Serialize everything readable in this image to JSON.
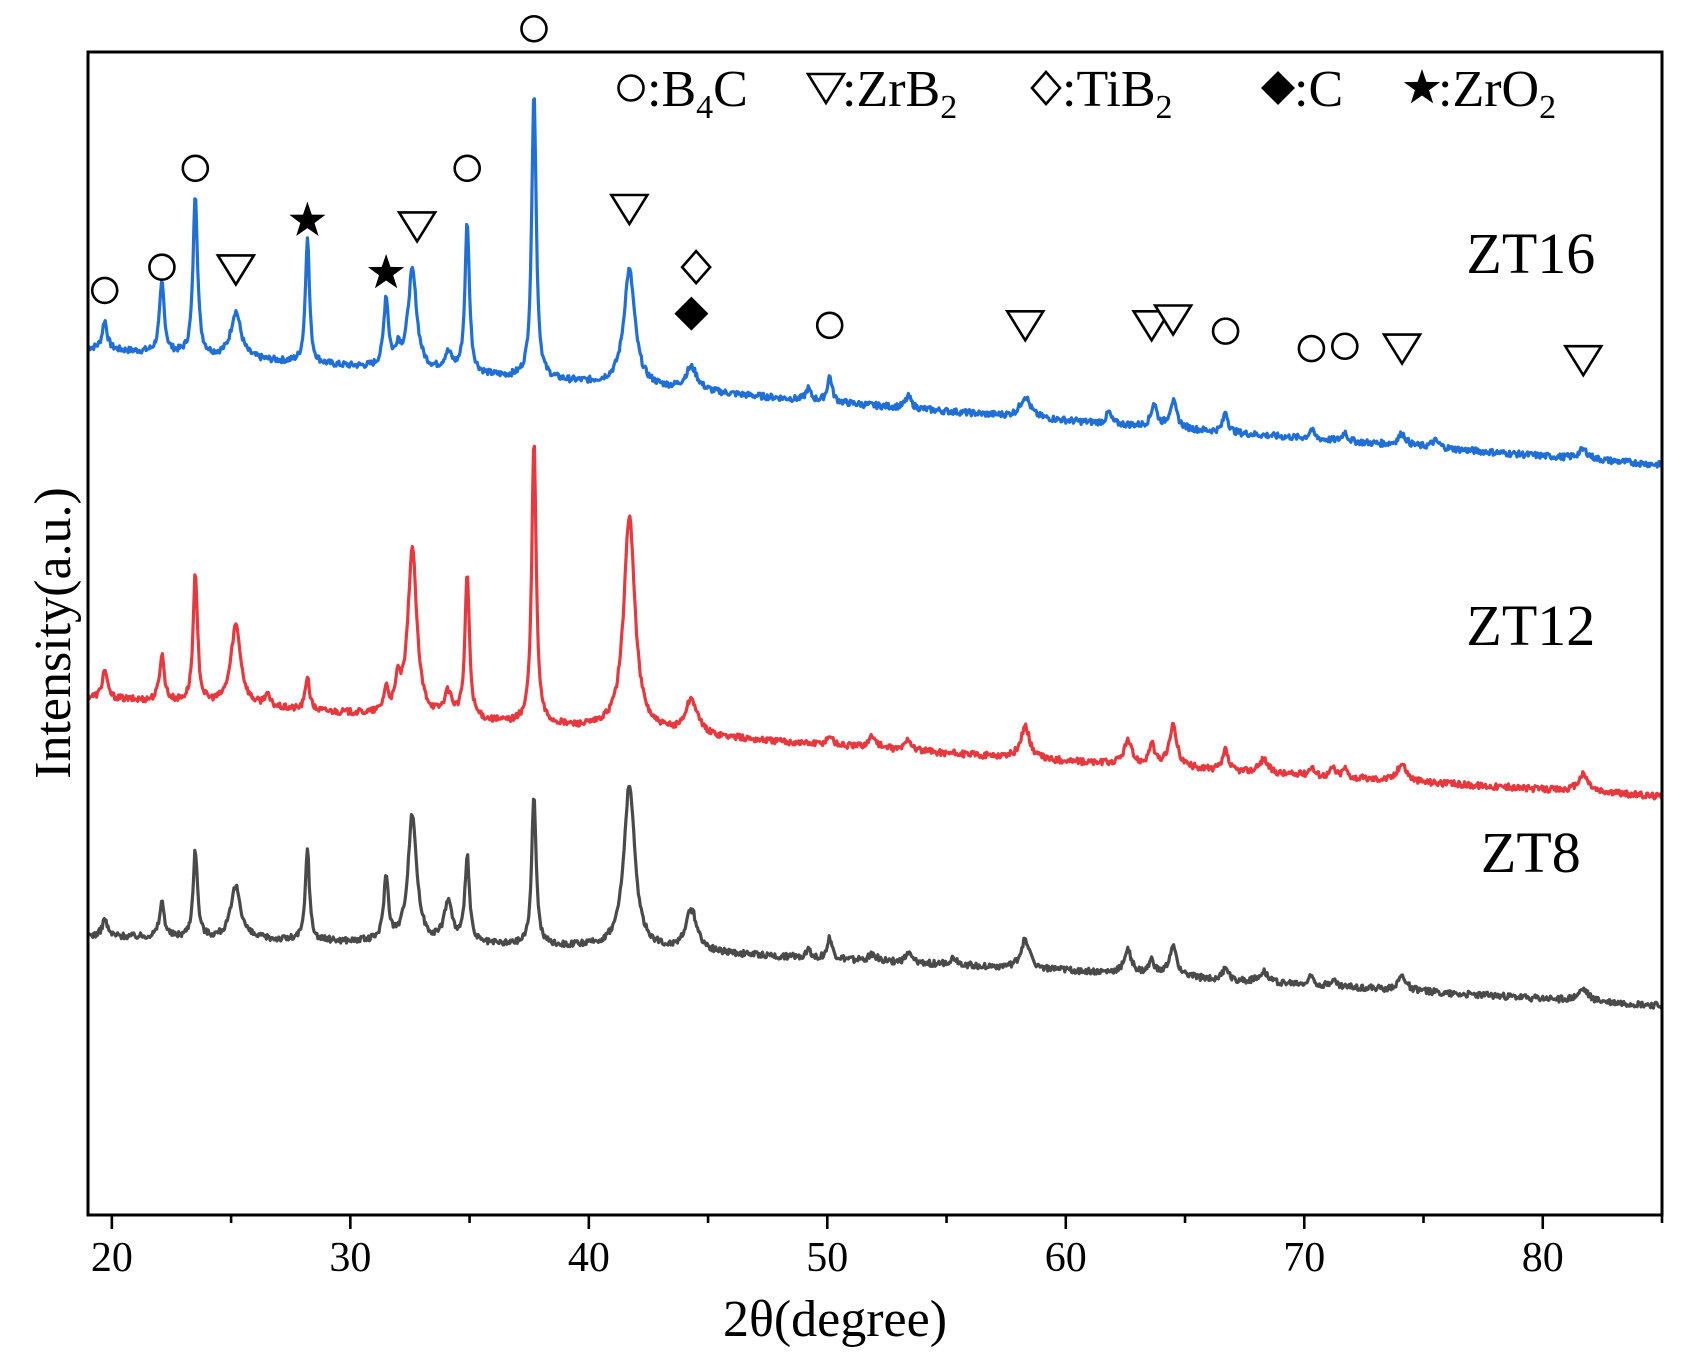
{
  "chart_data": {
    "type": "line",
    "title": "",
    "xlabel": "2θ(degree)",
    "ylabel": "Intensity(a.u.)",
    "xlim": [
      19,
      85
    ],
    "ylim": [
      0,
      100
    ],
    "xticks": [
      20,
      30,
      40,
      50,
      60,
      70,
      80
    ],
    "yticks_shown": false,
    "legend": {
      "placement": "top-right",
      "entries": [
        {
          "marker": "circle",
          "text": ":B",
          "sub": "4",
          "after": "C"
        },
        {
          "marker": "triangle-down",
          "text": ":ZrB",
          "sub": "2",
          "after": ""
        },
        {
          "marker": "diamond-open",
          "text": ":TiB",
          "sub": "2",
          "after": ""
        },
        {
          "marker": "diamond-filled",
          "text": ":C",
          "sub": "",
          "after": ""
        },
        {
          "marker": "star",
          "text": ":ZrO",
          "sub": "2",
          "after": ""
        }
      ]
    },
    "peak_positions": {
      "B4C": [
        19.7,
        22.1,
        23.5,
        34.9,
        37.7,
        50.1,
        66.7,
        70.3,
        71.7
      ],
      "ZrB2": [
        25.2,
        32.6,
        41.7,
        58.3,
        63.7,
        64.5,
        74.1,
        81.7
      ],
      "TiB2": [
        44.3
      ],
      "C": [
        44.3
      ],
      "ZrO2": [
        28.2,
        31.5
      ]
    },
    "series": [
      {
        "name": "ZT16",
        "color": "#1f6fd6",
        "baseline": [
          [
            19,
            74.5
          ],
          [
            40,
            71.5
          ],
          [
            60,
            68.3
          ],
          [
            85,
            64.5
          ]
        ],
        "peaks": [
          {
            "x": 19.7,
            "h": 2.5,
            "w": 0.12
          },
          {
            "x": 22.1,
            "h": 6.0,
            "w": 0.12
          },
          {
            "x": 23.5,
            "h": 14.0,
            "w": 0.11
          },
          {
            "x": 25.2,
            "h": 4.0,
            "w": 0.25
          },
          {
            "x": 28.2,
            "h": 11.0,
            "w": 0.1
          },
          {
            "x": 31.5,
            "h": 6.0,
            "w": 0.12
          },
          {
            "x": 32.0,
            "h": 1.5,
            "w": 0.12
          },
          {
            "x": 32.6,
            "h": 8.5,
            "w": 0.22
          },
          {
            "x": 34.1,
            "h": 1.5,
            "w": 0.2
          },
          {
            "x": 34.9,
            "h": 13.0,
            "w": 0.11
          },
          {
            "x": 37.7,
            "h": 25.0,
            "w": 0.11
          },
          {
            "x": 41.7,
            "h": 10.0,
            "w": 0.28
          },
          {
            "x": 44.3,
            "h": 2.0,
            "w": 0.3
          },
          {
            "x": 49.2,
            "h": 1.0,
            "w": 0.12
          },
          {
            "x": 50.1,
            "h": 2.2,
            "w": 0.12
          },
          {
            "x": 53.4,
            "h": 1.0,
            "w": 0.15
          },
          {
            "x": 58.3,
            "h": 1.8,
            "w": 0.25
          },
          {
            "x": 61.8,
            "h": 1.0,
            "w": 0.12
          },
          {
            "x": 63.7,
            "h": 2.0,
            "w": 0.14
          },
          {
            "x": 64.5,
            "h": 2.3,
            "w": 0.18
          },
          {
            "x": 66.7,
            "h": 1.8,
            "w": 0.12
          },
          {
            "x": 70.3,
            "h": 0.8,
            "w": 0.12
          },
          {
            "x": 71.7,
            "h": 0.8,
            "w": 0.12
          },
          {
            "x": 74.1,
            "h": 1.0,
            "w": 0.2
          },
          {
            "x": 75.5,
            "h": 0.6,
            "w": 0.2
          },
          {
            "x": 81.7,
            "h": 0.8,
            "w": 0.25
          }
        ]
      },
      {
        "name": "ZT12",
        "color": "#e8383d",
        "baseline": [
          [
            19,
            44.5
          ],
          [
            40,
            41.8
          ],
          [
            60,
            39.0
          ],
          [
            85,
            36.0
          ]
        ],
        "peaks": [
          {
            "x": 19.7,
            "h": 2.5,
            "w": 0.12
          },
          {
            "x": 22.1,
            "h": 4.0,
            "w": 0.12
          },
          {
            "x": 23.5,
            "h": 11.0,
            "w": 0.11
          },
          {
            "x": 25.2,
            "h": 7.0,
            "w": 0.25
          },
          {
            "x": 26.5,
            "h": 1.0,
            "w": 0.15
          },
          {
            "x": 28.2,
            "h": 3.0,
            "w": 0.1
          },
          {
            "x": 31.5,
            "h": 2.0,
            "w": 0.12
          },
          {
            "x": 32.0,
            "h": 2.5,
            "w": 0.12
          },
          {
            "x": 32.6,
            "h": 14.5,
            "w": 0.22
          },
          {
            "x": 34.1,
            "h": 2.0,
            "w": 0.2
          },
          {
            "x": 34.9,
            "h": 12.5,
            "w": 0.11
          },
          {
            "x": 37.7,
            "h": 24.5,
            "w": 0.11
          },
          {
            "x": 41.7,
            "h": 18.5,
            "w": 0.28
          },
          {
            "x": 44.3,
            "h": 3.0,
            "w": 0.3
          },
          {
            "x": 50.1,
            "h": 0.8,
            "w": 0.15
          },
          {
            "x": 51.9,
            "h": 1.0,
            "w": 0.2
          },
          {
            "x": 53.4,
            "h": 1.0,
            "w": 0.15
          },
          {
            "x": 58.3,
            "h": 2.8,
            "w": 0.22
          },
          {
            "x": 62.6,
            "h": 2.0,
            "w": 0.2
          },
          {
            "x": 63.6,
            "h": 1.8,
            "w": 0.14
          },
          {
            "x": 64.5,
            "h": 3.5,
            "w": 0.2
          },
          {
            "x": 66.7,
            "h": 1.8,
            "w": 0.12
          },
          {
            "x": 68.3,
            "h": 1.2,
            "w": 0.2
          },
          {
            "x": 70.3,
            "h": 0.8,
            "w": 0.12
          },
          {
            "x": 71.2,
            "h": 0.8,
            "w": 0.12
          },
          {
            "x": 71.7,
            "h": 0.8,
            "w": 0.12
          },
          {
            "x": 74.1,
            "h": 1.5,
            "w": 0.22
          },
          {
            "x": 81.7,
            "h": 1.5,
            "w": 0.25
          }
        ]
      },
      {
        "name": "ZT8",
        "color": "#4a4a4a",
        "baseline": [
          [
            19,
            24.0
          ],
          [
            40,
            23.0
          ],
          [
            60,
            21.0
          ],
          [
            85,
            18.0
          ]
        ],
        "peaks": [
          {
            "x": 19.7,
            "h": 1.5,
            "w": 0.12
          },
          {
            "x": 22.1,
            "h": 3.0,
            "w": 0.12
          },
          {
            "x": 23.5,
            "h": 7.5,
            "w": 0.11
          },
          {
            "x": 25.2,
            "h": 4.5,
            "w": 0.25
          },
          {
            "x": 28.2,
            "h": 8.0,
            "w": 0.1
          },
          {
            "x": 31.5,
            "h": 5.5,
            "w": 0.12
          },
          {
            "x": 32.6,
            "h": 11.0,
            "w": 0.22
          },
          {
            "x": 34.1,
            "h": 3.5,
            "w": 0.2
          },
          {
            "x": 34.9,
            "h": 7.5,
            "w": 0.11
          },
          {
            "x": 37.7,
            "h": 13.0,
            "w": 0.11
          },
          {
            "x": 41.7,
            "h": 14.0,
            "w": 0.28
          },
          {
            "x": 44.3,
            "h": 3.5,
            "w": 0.3
          },
          {
            "x": 49.2,
            "h": 0.8,
            "w": 0.12
          },
          {
            "x": 50.1,
            "h": 1.8,
            "w": 0.12
          },
          {
            "x": 51.9,
            "h": 0.6,
            "w": 0.2
          },
          {
            "x": 53.4,
            "h": 0.8,
            "w": 0.15
          },
          {
            "x": 55.3,
            "h": 0.6,
            "w": 0.2
          },
          {
            "x": 58.3,
            "h": 2.5,
            "w": 0.22
          },
          {
            "x": 62.6,
            "h": 2.0,
            "w": 0.2
          },
          {
            "x": 63.6,
            "h": 1.2,
            "w": 0.14
          },
          {
            "x": 64.5,
            "h": 2.5,
            "w": 0.2
          },
          {
            "x": 66.7,
            "h": 1.2,
            "w": 0.12
          },
          {
            "x": 68.3,
            "h": 1.0,
            "w": 0.2
          },
          {
            "x": 70.3,
            "h": 0.8,
            "w": 0.12
          },
          {
            "x": 71.2,
            "h": 0.6,
            "w": 0.12
          },
          {
            "x": 74.1,
            "h": 1.2,
            "w": 0.22
          },
          {
            "x": 81.7,
            "h": 1.0,
            "w": 0.25
          }
        ]
      }
    ],
    "annotations": [
      {
        "marker": "circle",
        "x": 19.7,
        "y": 79.5
      },
      {
        "marker": "circle",
        "x": 22.1,
        "y": 81.5
      },
      {
        "marker": "circle",
        "x": 23.5,
        "y": 90.0
      },
      {
        "marker": "triangle-down",
        "x": 25.2,
        "y": 81.3
      },
      {
        "marker": "star",
        "x": 28.2,
        "y": 85.5
      },
      {
        "marker": "star",
        "x": 31.5,
        "y": 81.0
      },
      {
        "marker": "triangle-down",
        "x": 32.8,
        "y": 85.0
      },
      {
        "marker": "circle",
        "x": 34.9,
        "y": 90.0
      },
      {
        "marker": "circle",
        "x": 37.7,
        "y": 102.0
      },
      {
        "marker": "triangle-down",
        "x": 41.7,
        "y": 86.5
      },
      {
        "marker": "diamond-open",
        "x": 44.5,
        "y": 81.5
      },
      {
        "marker": "diamond-filled",
        "x": 44.3,
        "y": 77.5
      },
      {
        "marker": "circle",
        "x": 50.1,
        "y": 76.5
      },
      {
        "marker": "triangle-down",
        "x": 58.3,
        "y": 76.5
      },
      {
        "marker": "triangle-down",
        "x": 63.6,
        "y": 76.5
      },
      {
        "marker": "triangle-down",
        "x": 64.5,
        "y": 77.0
      },
      {
        "marker": "circle",
        "x": 66.7,
        "y": 76.0
      },
      {
        "marker": "circle",
        "x": 70.3,
        "y": 74.5
      },
      {
        "marker": "circle",
        "x": 71.7,
        "y": 74.7
      },
      {
        "marker": "triangle-down",
        "x": 74.1,
        "y": 74.5
      },
      {
        "marker": "triangle-down",
        "x": 81.7,
        "y": 73.5
      }
    ],
    "sample_labels": [
      {
        "text": "ZT16",
        "x": 79.5,
        "y": 81.0
      },
      {
        "text": "ZT12",
        "x": 79.5,
        "y": 49.0
      },
      {
        "text": "ZT8",
        "x": 79.5,
        "y": 29.5
      }
    ]
  }
}
